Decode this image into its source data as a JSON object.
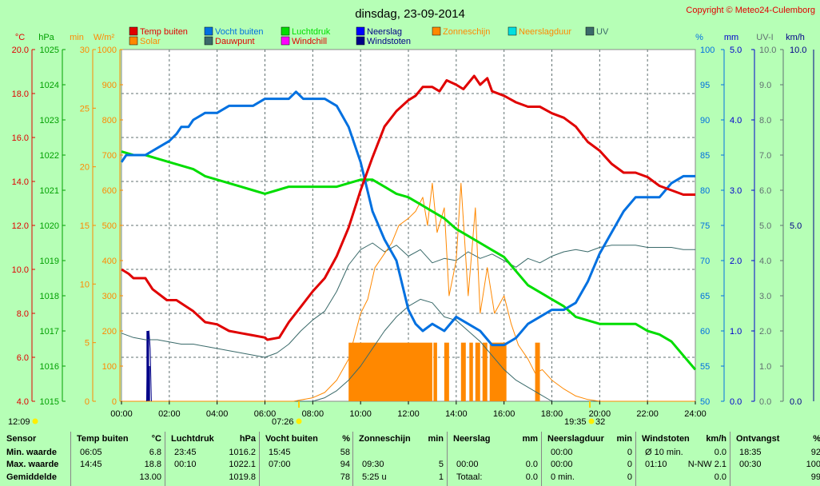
{
  "title": "dinsdag, 23-09-2014",
  "copyright": "Copyright © Meteo24-Culemborg",
  "legend": [
    {
      "label": "Temp buiten",
      "color": "#e00000"
    },
    {
      "label": "Solar",
      "color": "#ff8800"
    },
    {
      "label": "Vocht buiten",
      "color": "#0070e0"
    },
    {
      "label": "Dauwpunt",
      "color": "#3a6a6a"
    },
    {
      "label": "Luchtdruk",
      "color": "#00dd00"
    },
    {
      "label": "Windchill",
      "color": "#ff00ff"
    },
    {
      "label": "Neerslag",
      "color": "#0000ff"
    },
    {
      "label": "Windstoten",
      "color": "#000088"
    },
    {
      "label": "Zonneschijn",
      "color": "#ff8800"
    },
    {
      "label": "Neerslagduur",
      "color": "#00e0e0"
    },
    {
      "label": "UV",
      "color": "#3a6a6a"
    }
  ],
  "axis_units": {
    "temp": "°C",
    "pressure": "hPa",
    "min": "min",
    "solar": "W/m²",
    "humidity": "%",
    "rain": "mm",
    "uv": "UV-I",
    "wind": "km/h"
  },
  "axis_ticks": {
    "temp": [
      "20.0",
      "18.0",
      "16.0",
      "14.0",
      "12.0",
      "10.0",
      "8.0",
      "6.0",
      "4.0"
    ],
    "pressure": [
      "1025",
      "1024",
      "1023",
      "1022",
      "1021",
      "1020",
      "1019",
      "1018",
      "1017",
      "1016",
      "1015"
    ],
    "min": [
      "30",
      "25",
      "20",
      "15",
      "10",
      "5",
      "0"
    ],
    "solar": [
      "1000",
      "900",
      "800",
      "700",
      "600",
      "500",
      "400",
      "300",
      "200",
      "100",
      "0"
    ],
    "humidity": [
      "100",
      "95",
      "90",
      "85",
      "80",
      "75",
      "70",
      "65",
      "60",
      "55",
      "50"
    ],
    "rain": [
      "5.0",
      "4.0",
      "3.0",
      "2.0",
      "1.0",
      "0.0"
    ],
    "uv": [
      "10.0",
      "9.0",
      "8.0",
      "7.0",
      "6.0",
      "5.0",
      "4.0",
      "3.0",
      "2.0",
      "1.0",
      "0.0"
    ],
    "wind_top": "10.0",
    "wind_mid": "5.0",
    "wind_bottom": "0.0"
  },
  "x_ticks": [
    "00:00",
    "02:00",
    "04:00",
    "06:00",
    "08:00",
    "10:00",
    "12:00",
    "14:00",
    "16:00",
    "18:00",
    "20:00",
    "22:00",
    "24:00"
  ],
  "sun_events": {
    "left": "12:09",
    "sunrise": "07:26",
    "sunset": "19:35",
    "sunset_suffix": "32"
  },
  "chart_data": {
    "type": "line",
    "title": "dinsdag, 23-09-2014",
    "x_unit": "hours",
    "xlim": [
      0,
      24
    ],
    "series": [
      {
        "name": "Temp buiten",
        "unit": "°C",
        "ylim": [
          4,
          20
        ],
        "color": "#e00000",
        "x": [
          0,
          0.3,
          0.5,
          1,
          1.3,
          1.9,
          2.3,
          3,
          3.5,
          4,
          4.5,
          5,
          5.5,
          6,
          6.1,
          6.6,
          7,
          7.5,
          8,
          8.5,
          9,
          9.5,
          10,
          10.5,
          11,
          11.5,
          12,
          12.3,
          12.6,
          13,
          13.3,
          13.6,
          14,
          14.3,
          14.75,
          15,
          15.3,
          15.5,
          16,
          16.5,
          17,
          17.5,
          18,
          18.5,
          19,
          19.5,
          20,
          20.5,
          21,
          21.5,
          22,
          22.5,
          23,
          23.5,
          24
        ],
        "y": [
          10,
          9.8,
          9.6,
          9.6,
          9.1,
          8.6,
          8.6,
          8.1,
          7.6,
          7.5,
          7.2,
          7.1,
          7,
          6.9,
          6.8,
          6.9,
          7.6,
          8.3,
          9.0,
          9.6,
          10.6,
          11.9,
          13.6,
          15.1,
          16.5,
          17.2,
          17.7,
          17.9,
          18.3,
          18.3,
          18.1,
          18.6,
          18.4,
          18.2,
          18.8,
          18.4,
          18.7,
          18.1,
          17.9,
          17.6,
          17.4,
          17.4,
          17.1,
          16.9,
          16.5,
          15.8,
          15.4,
          14.8,
          14.4,
          14.4,
          14.2,
          13.8,
          13.6,
          13.4,
          13.4
        ]
      },
      {
        "name": "Vocht buiten",
        "unit": "%",
        "ylim": [
          50,
          100
        ],
        "color": "#0070e0",
        "x": [
          0,
          0.2,
          0.5,
          1,
          1.5,
          2,
          2.3,
          2.5,
          2.8,
          3,
          3.5,
          4,
          4.5,
          5,
          5.5,
          6,
          6.5,
          7,
          7.3,
          7.6,
          8,
          8.5,
          9,
          9.5,
          10,
          10.5,
          11,
          11.5,
          12,
          12.3,
          12.6,
          13,
          13.5,
          14,
          14.5,
          15,
          15.5,
          16,
          16.5,
          17,
          17.5,
          18,
          18.5,
          19,
          19.5,
          20,
          20.5,
          21,
          21.5,
          22,
          22.5,
          23,
          23.5,
          24
        ],
        "y": [
          84,
          85,
          85,
          85,
          86,
          87,
          88,
          89,
          89,
          90,
          91,
          91,
          92,
          92,
          92,
          93,
          93,
          93,
          94,
          93,
          93,
          93,
          92,
          89,
          84,
          77,
          73,
          70,
          63,
          61,
          60,
          61,
          60,
          62,
          61,
          60,
          58,
          58,
          59,
          61,
          62,
          63,
          63,
          64,
          67,
          71,
          74,
          77,
          79,
          79,
          79,
          81,
          82,
          82
        ]
      },
      {
        "name": "Luchtdruk",
        "unit": "hPa",
        "ylim": [
          1015,
          1025
        ],
        "color": "#00dd00",
        "x": [
          0,
          0.5,
          1,
          1.5,
          2,
          2.5,
          3,
          3.5,
          4,
          4.5,
          5,
          5.5,
          6,
          6.5,
          7,
          7.5,
          8,
          8.5,
          9,
          9.5,
          10,
          10.5,
          11,
          11.5,
          12,
          12.5,
          13,
          13.5,
          14,
          14.5,
          15,
          15.5,
          16,
          16.5,
          17,
          17.5,
          18,
          18.5,
          19,
          19.5,
          20,
          20.5,
          21,
          21.5,
          22,
          22.5,
          23,
          23.5,
          24
        ],
        "y": [
          1022.1,
          1022,
          1022,
          1021.9,
          1021.8,
          1021.7,
          1021.6,
          1021.4,
          1021.3,
          1021.2,
          1021.1,
          1021,
          1020.9,
          1021,
          1021.1,
          1021.1,
          1021.1,
          1021.1,
          1021.1,
          1021.2,
          1021.3,
          1021.3,
          1021.1,
          1020.9,
          1020.8,
          1020.6,
          1020.4,
          1020.2,
          1019.9,
          1019.7,
          1019.5,
          1019.3,
          1019.1,
          1018.7,
          1018.3,
          1018.1,
          1017.9,
          1017.7,
          1017.4,
          1017.3,
          1017.2,
          1017.2,
          1017.2,
          1017.2,
          1017.0,
          1016.9,
          1016.7,
          1016.3,
          1015.9
        ]
      },
      {
        "name": "Solar",
        "unit": "W/m²",
        "ylim": [
          0,
          1000
        ],
        "color": "#ff8800",
        "x": [
          0,
          7.2,
          8,
          8.5,
          9,
          9.5,
          10,
          10.3,
          10.6,
          11,
          11.3,
          11.6,
          12,
          12.3,
          12.6,
          12.8,
          13,
          13.2,
          13.5,
          13.7,
          14,
          14.2,
          14.5,
          14.8,
          15,
          15.3,
          15.6,
          16,
          16.3,
          16.6,
          17,
          17.3,
          17.6,
          18,
          18.5,
          19,
          19.5,
          20,
          24
        ],
        "y": [
          0,
          0,
          10,
          25,
          60,
          120,
          250,
          290,
          380,
          420,
          450,
          500,
          520,
          540,
          580,
          500,
          620,
          480,
          550,
          300,
          400,
          620,
          300,
          550,
          250,
          380,
          250,
          300,
          220,
          160,
          120,
          80,
          90,
          60,
          35,
          15,
          5,
          0,
          0
        ]
      },
      {
        "name": "Dauwpunt",
        "unit": "°C",
        "ylim": [
          4,
          20
        ],
        "color": "#3a6a6a",
        "x": [
          0,
          0.5,
          1,
          1.5,
          2,
          2.5,
          3,
          3.5,
          4,
          4.5,
          5,
          5.5,
          6,
          6.5,
          7,
          7.5,
          8,
          8.5,
          9,
          9.5,
          10,
          10.5,
          11,
          11.5,
          12,
          12.5,
          13,
          13.5,
          14,
          14.5,
          15,
          15.5,
          16,
          16.5,
          17,
          17.5,
          18,
          18.5,
          19,
          19.5,
          20,
          20.5,
          21,
          21.5,
          22,
          22.5,
          23,
          23.5,
          24
        ],
        "y": [
          7.1,
          6.9,
          6.8,
          6.8,
          6.7,
          6.6,
          6.6,
          6.5,
          6.4,
          6.3,
          6.2,
          6.1,
          6.0,
          6.2,
          6.6,
          7.2,
          7.7,
          8.1,
          9.0,
          10.2,
          10.9,
          11.2,
          10.8,
          11.1,
          10.6,
          10.9,
          10.3,
          10.5,
          10.4,
          10.8,
          10.5,
          10.7,
          10.4,
          10.1,
          10.5,
          10.3,
          10.6,
          10.8,
          10.9,
          10.8,
          11.0,
          11.1,
          11.1,
          11.1,
          11.0,
          11.0,
          11.0,
          10.9,
          10.9
        ]
      },
      {
        "name": "UV",
        "unit": "UV-I",
        "ylim": [
          0,
          10
        ],
        "color": "#3a6a6a",
        "x": [
          0,
          7.5,
          8,
          8.5,
          9,
          9.5,
          10,
          10.5,
          11,
          11.5,
          12,
          12.5,
          13,
          13.5,
          14,
          14.5,
          15,
          15.5,
          16,
          16.5,
          17,
          17.5,
          18,
          24
        ],
        "y": [
          0,
          0,
          0,
          0.1,
          0.3,
          0.6,
          1.0,
          1.5,
          2.0,
          2.4,
          2.7,
          2.9,
          2.8,
          2.4,
          2.3,
          2.0,
          1.7,
          1.3,
          0.9,
          0.6,
          0.4,
          0.2,
          0,
          0
        ]
      },
      {
        "name": "Windstoten",
        "unit": "km/h",
        "ylim": [
          0,
          10
        ],
        "color": "#000088",
        "x": [
          1.05,
          1.1,
          1.15,
          1.2,
          1.25
        ],
        "y": [
          0,
          1.8,
          2.0,
          1.5,
          0
        ]
      }
    ],
    "zonneschijn_bars": {
      "unit": "min",
      "ylim": [
        0,
        30
      ],
      "color": "#ff8800",
      "intervals": [
        [
          9.5,
          13.0,
          5
        ],
        [
          13.05,
          13.2,
          5
        ],
        [
          13.5,
          13.7,
          5
        ],
        [
          14.2,
          14.4,
          5
        ],
        [
          14.55,
          14.7,
          5
        ],
        [
          14.8,
          15.0,
          5
        ],
        [
          15.1,
          15.3,
          5
        ],
        [
          15.4,
          16.1,
          5
        ],
        [
          17.3,
          17.5,
          5
        ]
      ]
    },
    "windstoten_bars": {
      "unit": "km/h",
      "color": "#000088",
      "x": [
        1.08,
        1.12,
        1.16
      ],
      "y": [
        2.0,
        2.0,
        1.0
      ]
    }
  },
  "stats": {
    "labels": {
      "sensor": "Sensor",
      "min": "Min. waarde",
      "max": "Max. waarde",
      "avg": "Gemiddelde"
    },
    "columns": [
      {
        "title": "Temp buiten",
        "unit": "°C",
        "min_time": "06:05",
        "min_val": "6.8",
        "max_time": "14:45",
        "max_val": "18.8",
        "avg_time": "",
        "avg_val": "13.00"
      },
      {
        "title": "Luchtdruk",
        "unit": "hPa",
        "min_time": "23:45",
        "min_val": "1016.2",
        "max_time": "00:10",
        "max_val": "1022.1",
        "avg_time": "",
        "avg_val": "1019.8"
      },
      {
        "title": "Vocht buiten",
        "unit": "%",
        "min_time": "15:45",
        "min_val": "58",
        "max_time": "07:00",
        "max_val": "94",
        "avg_time": "",
        "avg_val": "78"
      },
      {
        "title": "Zonneschijn",
        "unit": "min",
        "min_time": "",
        "min_val": "",
        "max_time": "09:30",
        "max_val": "5",
        "avg_time": "5:25 u",
        "avg_val": "1"
      },
      {
        "title": "Neerslag",
        "unit": "mm",
        "min_time": "",
        "min_val": "",
        "max_time": "00:00",
        "max_val": "0.0",
        "avg_time": "Totaal:",
        "avg_val": "0.0"
      },
      {
        "title": "Neerslagduur",
        "unit": "min",
        "min_time": "00:00",
        "min_val": "0",
        "max_time": "00:00",
        "max_val": "0",
        "avg_time": "0 min.",
        "avg_val": "0"
      },
      {
        "title": "Windstoten",
        "unit": "km/h",
        "min_time": "Ø 10 min.",
        "min_val": "0.0",
        "max_time": "01:10",
        "max_val": "N-NW 2.1",
        "avg_time": "",
        "avg_val": "0.0"
      },
      {
        "title": "Ontvangst",
        "unit": "%",
        "min_time": "18:35",
        "min_val": "92",
        "max_time": "00:30",
        "max_val": "100",
        "avg_time": "",
        "avg_val": "99"
      }
    ]
  }
}
